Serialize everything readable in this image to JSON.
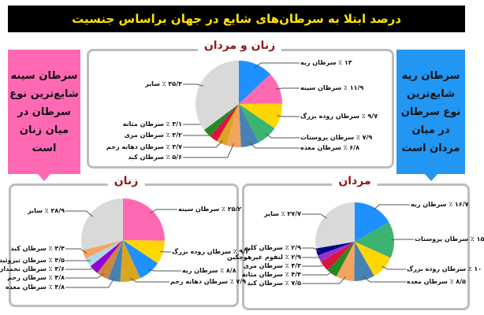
{
  "title": "درصد ابتلا به سرطان‌های شایع در جهان براساس جنسیت",
  "side_women": {
    "text": "سرطان سینه شایع‌ترین نوع سرطان در میان زنان است",
    "color": "#ff69b4"
  },
  "side_men": {
    "text": "سرطان ریه شایع‌ترین نوع سرطان در میان مردان است",
    "color": "#2196f3"
  },
  "chart_data": [
    {
      "type": "pie",
      "title": "زنان و مردان",
      "start": "12 o'clock, clockwise",
      "slices": [
        {
          "name": "سرطان ریه",
          "value": 13,
          "label": "۱۳ ٪ سرطان ریه",
          "color": "#1e90ff"
        },
        {
          "name": "سرطان سینه",
          "value": 11.9,
          "label": "۱۱/۹ ٪ سرطان سینه",
          "color": "#ff69b4"
        },
        {
          "name": "سرطان روده بزرگ",
          "value": 9.7,
          "label": "۹/۷ ٪ سرطان روده بزرگ",
          "color": "#ffd700"
        },
        {
          "name": "سرطان پروستات",
          "value": 7.9,
          "label": "۷/۹ ٪ سرطان پروستات",
          "color": "#3cb371"
        },
        {
          "name": "سرطان معده",
          "value": 6.8,
          "label": "۶/۸ ٪ سرطان معده",
          "color": "#4682b4"
        },
        {
          "name": "سرطان کبد",
          "value": 5.6,
          "label": "۵/۶ ٪ سرطان کبد",
          "color": "#f4a460"
        },
        {
          "name": "سرطان دهانه رحم",
          "value": 3.7,
          "label": "۳/۷ ٪ سرطان دهانه رحم",
          "color": "#daa520"
        },
        {
          "name": "سرطان مری",
          "value": 3.2,
          "label": "۳/۲ ٪ سرطان مری",
          "color": "#dc143c"
        },
        {
          "name": "سرطان مثانه",
          "value": 3.1,
          "label": "۳/۱ ٪ سرطان مثانه",
          "color": "#228b22"
        },
        {
          "name": "سایر",
          "value": 35.3,
          "label": "۳۵/۳ ٪ سایر",
          "color": "#d9d9d9"
        }
      ]
    },
    {
      "type": "pie",
      "title": "زنان",
      "start": "12 o'clock, clockwise",
      "slices": [
        {
          "name": "سرطان سینه",
          "value": 25.2,
          "label": "۲۵/۲ ٪ سرطان سینه",
          "color": "#ff69b4"
        },
        {
          "name": "سرطان روده بزرگ",
          "value": 9.2,
          "label": "۹/۲ ٪ سرطان روده بزرگ",
          "color": "#ffd700"
        },
        {
          "name": "سرطان ریه",
          "value": 8.8,
          "label": "۸/۸ ٪ سرطان ریه",
          "color": "#1e90ff"
        },
        {
          "name": "سرطان دهانه رحم",
          "value": 7.9,
          "label": "۷/۹ ٪ سرطان دهانه رحم",
          "color": "#daa520"
        },
        {
          "name": "سرطان معده",
          "value": 4.8,
          "label": "۴/۸ ٪ سرطان معده",
          "color": "#4682b4"
        },
        {
          "name": "سرطان رحم",
          "value": 4.8,
          "label": "۴/۸ ٪ سرطان رحم",
          "color": "#cd853f"
        },
        {
          "name": "سرطان تخمدان",
          "value": 3.6,
          "label": "۳/۶ ٪ سرطان تخمدان",
          "color": "#9400d3"
        },
        {
          "name": "سرطان تیروئید",
          "value": 3.5,
          "label": "۳/۵ ٪ سرطان تیروئید",
          "color": "#add8e6"
        },
        {
          "name": "سرطان کبد",
          "value": 3.4,
          "label": "۳/۴ ٪ سرطان کبد",
          "color": "#f4a460"
        },
        {
          "name": "سایر",
          "value": 28.9,
          "label": "۲۸/۹ ٪ سایر",
          "color": "#d9d9d9"
        }
      ]
    },
    {
      "type": "pie",
      "title": "مردان",
      "start": "12 o'clock, clockwise",
      "slices": [
        {
          "name": "سرطان ریه",
          "value": 16.7,
          "label": "۱۶/۷ ٪ سرطان ریه",
          "color": "#1e90ff"
        },
        {
          "name": "سرطان پروستات",
          "value": 15,
          "label": "۱۵ ٪ سرطان پروستات",
          "color": "#3cb371"
        },
        {
          "name": "سرطان روده بزرگ",
          "value": 10,
          "label": "۱۰ ٪ سرطان روده بزرگ",
          "color": "#ffd700"
        },
        {
          "name": "سرطان معده",
          "value": 8.5,
          "label": "۸/۵ ٪ سرطان معده",
          "color": "#4682b4"
        },
        {
          "name": "سرطان کبد",
          "value": 7.5,
          "label": "۷/۵ ٪ سرطان کبد",
          "color": "#f4a460"
        },
        {
          "name": "سرطان مثانه",
          "value": 4.4,
          "label": "۴/۴ ٪ سرطان مثانه",
          "color": "#228b22"
        },
        {
          "name": "سرطان مری",
          "value": 4.3,
          "label": "۴/۳ ٪ سرطان مری",
          "color": "#dc143c"
        },
        {
          "name": "لنفوم غیرهوچکین",
          "value": 2.9,
          "label": "۲/۹ ٪ لنفوم غیرهوچکین",
          "color": "#9932cc"
        },
        {
          "name": "سرطان کلیه",
          "value": 2.9,
          "label": "۲/۹ ٪ سرطان کلیه",
          "color": "#00008b"
        },
        {
          "name": "سایر",
          "value": 27.7,
          "label": "۲۷/۷ ٪ سایر",
          "color": "#d9d9d9"
        }
      ]
    }
  ]
}
